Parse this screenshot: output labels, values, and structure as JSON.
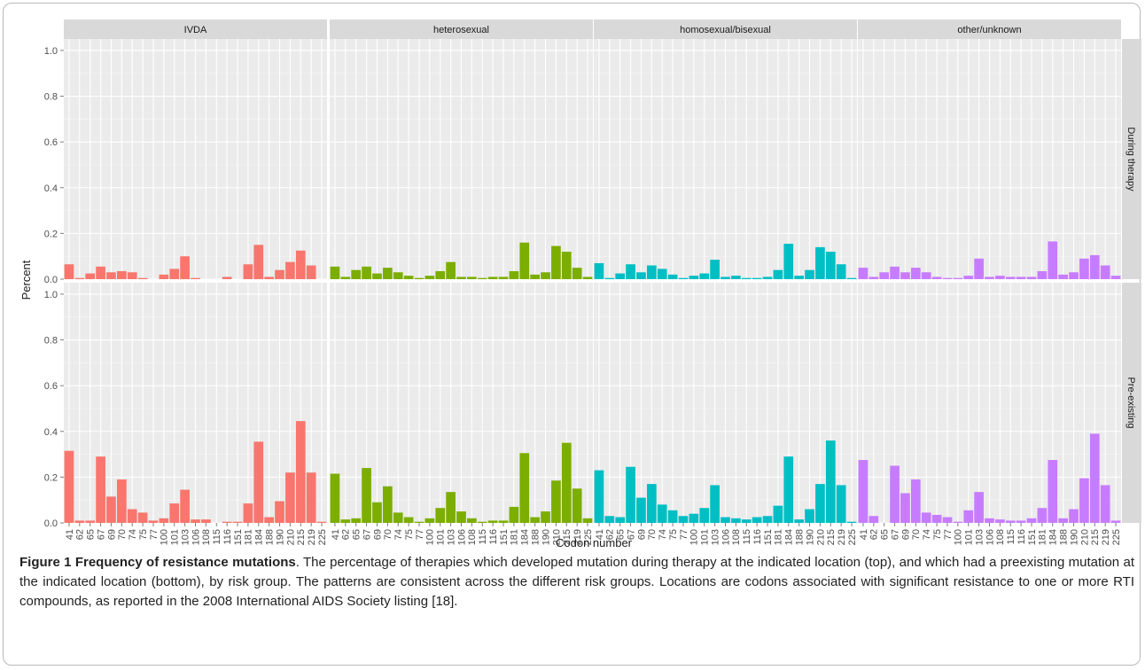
{
  "chart_data": {
    "type": "bar",
    "x_label": "Codon number",
    "y_label": "Percent",
    "ylim": [
      0,
      1.05
    ],
    "y_ticks": [
      "0.0",
      "0.2",
      "0.4",
      "0.6",
      "0.8",
      "1.0"
    ],
    "y_tick_values": [
      0,
      0.2,
      0.4,
      0.6,
      0.8,
      1.0
    ],
    "grid": true,
    "codons": [
      "41",
      "62",
      "65",
      "67",
      "69",
      "70",
      "74",
      "75",
      "77",
      "100",
      "101",
      "103",
      "106",
      "108",
      "115",
      "116",
      "151",
      "181",
      "184",
      "188",
      "190",
      "210",
      "215",
      "219",
      "225"
    ],
    "columns": [
      "IVDA",
      "heterosexual",
      "homosexual/bisexual",
      "other/unknown"
    ],
    "rows": [
      "During therapy",
      "Pre-existing"
    ],
    "series_colors": [
      "#F8766D",
      "#7CAE00",
      "#00BFC4",
      "#C77CFF"
    ],
    "values": {
      "During therapy": {
        "IVDA": [
          0.065,
          0.005,
          0.025,
          0.055,
          0.03,
          0.035,
          0.03,
          0.005,
          0.0,
          0.02,
          0.045,
          0.1,
          0.005,
          0.0,
          0.0,
          0.01,
          0.0,
          0.065,
          0.15,
          0.01,
          0.04,
          0.075,
          0.125,
          0.06,
          0.0
        ],
        "heterosexual": [
          0.055,
          0.01,
          0.04,
          0.055,
          0.025,
          0.05,
          0.03,
          0.015,
          0.005,
          0.015,
          0.035,
          0.075,
          0.01,
          0.01,
          0.005,
          0.01,
          0.01,
          0.035,
          0.16,
          0.02,
          0.03,
          0.145,
          0.12,
          0.05,
          0.01
        ],
        "homosexual/bisexual": [
          0.07,
          0.005,
          0.025,
          0.065,
          0.03,
          0.06,
          0.045,
          0.02,
          0.005,
          0.015,
          0.025,
          0.085,
          0.01,
          0.015,
          0.005,
          0.005,
          0.01,
          0.04,
          0.155,
          0.015,
          0.04,
          0.14,
          0.12,
          0.065,
          0.005
        ],
        "homosexual/bisexual_note": "",
        "other/unknown": [
          0.05,
          0.01,
          0.03,
          0.055,
          0.03,
          0.05,
          0.03,
          0.01,
          0.005,
          0.005,
          0.015,
          0.09,
          0.01,
          0.015,
          0.01,
          0.01,
          0.01,
          0.035,
          0.165,
          0.02,
          0.03,
          0.09,
          0.105,
          0.06,
          0.015
        ]
      },
      "Pre-existing": {
        "IVDA": [
          0.315,
          0.01,
          0.01,
          0.29,
          0.115,
          0.19,
          0.06,
          0.045,
          0.01,
          0.02,
          0.085,
          0.145,
          0.015,
          0.015,
          0.0,
          0.005,
          0.005,
          0.085,
          0.355,
          0.025,
          0.095,
          0.22,
          0.445,
          0.22,
          0.005
        ],
        "heterosexual": [
          0.215,
          0.015,
          0.02,
          0.24,
          0.09,
          0.16,
          0.045,
          0.025,
          0.005,
          0.02,
          0.065,
          0.135,
          0.05,
          0.02,
          0.005,
          0.01,
          0.01,
          0.07,
          0.305,
          0.025,
          0.05,
          0.185,
          0.35,
          0.15,
          0.02
        ],
        "homosexual/bisexual": [
          0.23,
          0.03,
          0.025,
          0.245,
          0.11,
          0.17,
          0.08,
          0.055,
          0.03,
          0.04,
          0.065,
          0.165,
          0.025,
          0.02,
          0.015,
          0.025,
          0.03,
          0.075,
          0.29,
          0.015,
          0.06,
          0.17,
          0.36,
          0.165,
          0.005
        ],
        "other/unknown": [
          0.275,
          0.03,
          0.0,
          0.25,
          0.13,
          0.19,
          0.045,
          0.035,
          0.025,
          0.005,
          0.055,
          0.135,
          0.02,
          0.015,
          0.01,
          0.01,
          0.02,
          0.065,
          0.275,
          0.02,
          0.06,
          0.195,
          0.39,
          0.165,
          0.01
        ]
      }
    }
  },
  "caption": {
    "title": "Figure 1 Frequency of resistance mutations",
    "text": ". The percentage of therapies which developed mutation during therapy at the indicated location (top), and which had a preexisting mutation at the indicated location (bottom), by risk group. The patterns are consistent across the different risk groups. Locations are codons associated with significant resistance to one or more RTI compounds, as reported in the 2008 International AIDS Society listing [18]."
  }
}
